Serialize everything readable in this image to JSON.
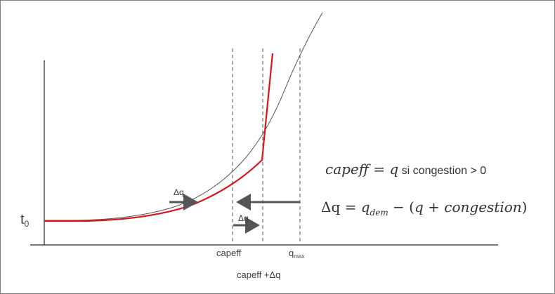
{
  "colors": {
    "curve": "#555555",
    "red_curve": "#d9141e",
    "arrow": "#555555",
    "axis": "#222222"
  },
  "labels": {
    "t0_main": "t",
    "t0_sub": "0",
    "capeff": "capeff",
    "qmax_main": "q",
    "qmax_sub": "max",
    "capeff_dq": "capeff +Δq",
    "dq_left": "Δq",
    "dq_mid": "Δq"
  },
  "formulas": {
    "f1_lhs": "capeff",
    "f1_eq": " = ",
    "f1_rhs": "q",
    "f1_cond": "  si congestion > 0",
    "f2_dq": "Δq = ",
    "f2_q": "q",
    "f2_sub": "dem",
    "f2_rest": " − (",
    "f2_q2": "q",
    "f2_plus": " + ",
    "f2_cong": "congestion",
    "f2_close": ")"
  }
}
